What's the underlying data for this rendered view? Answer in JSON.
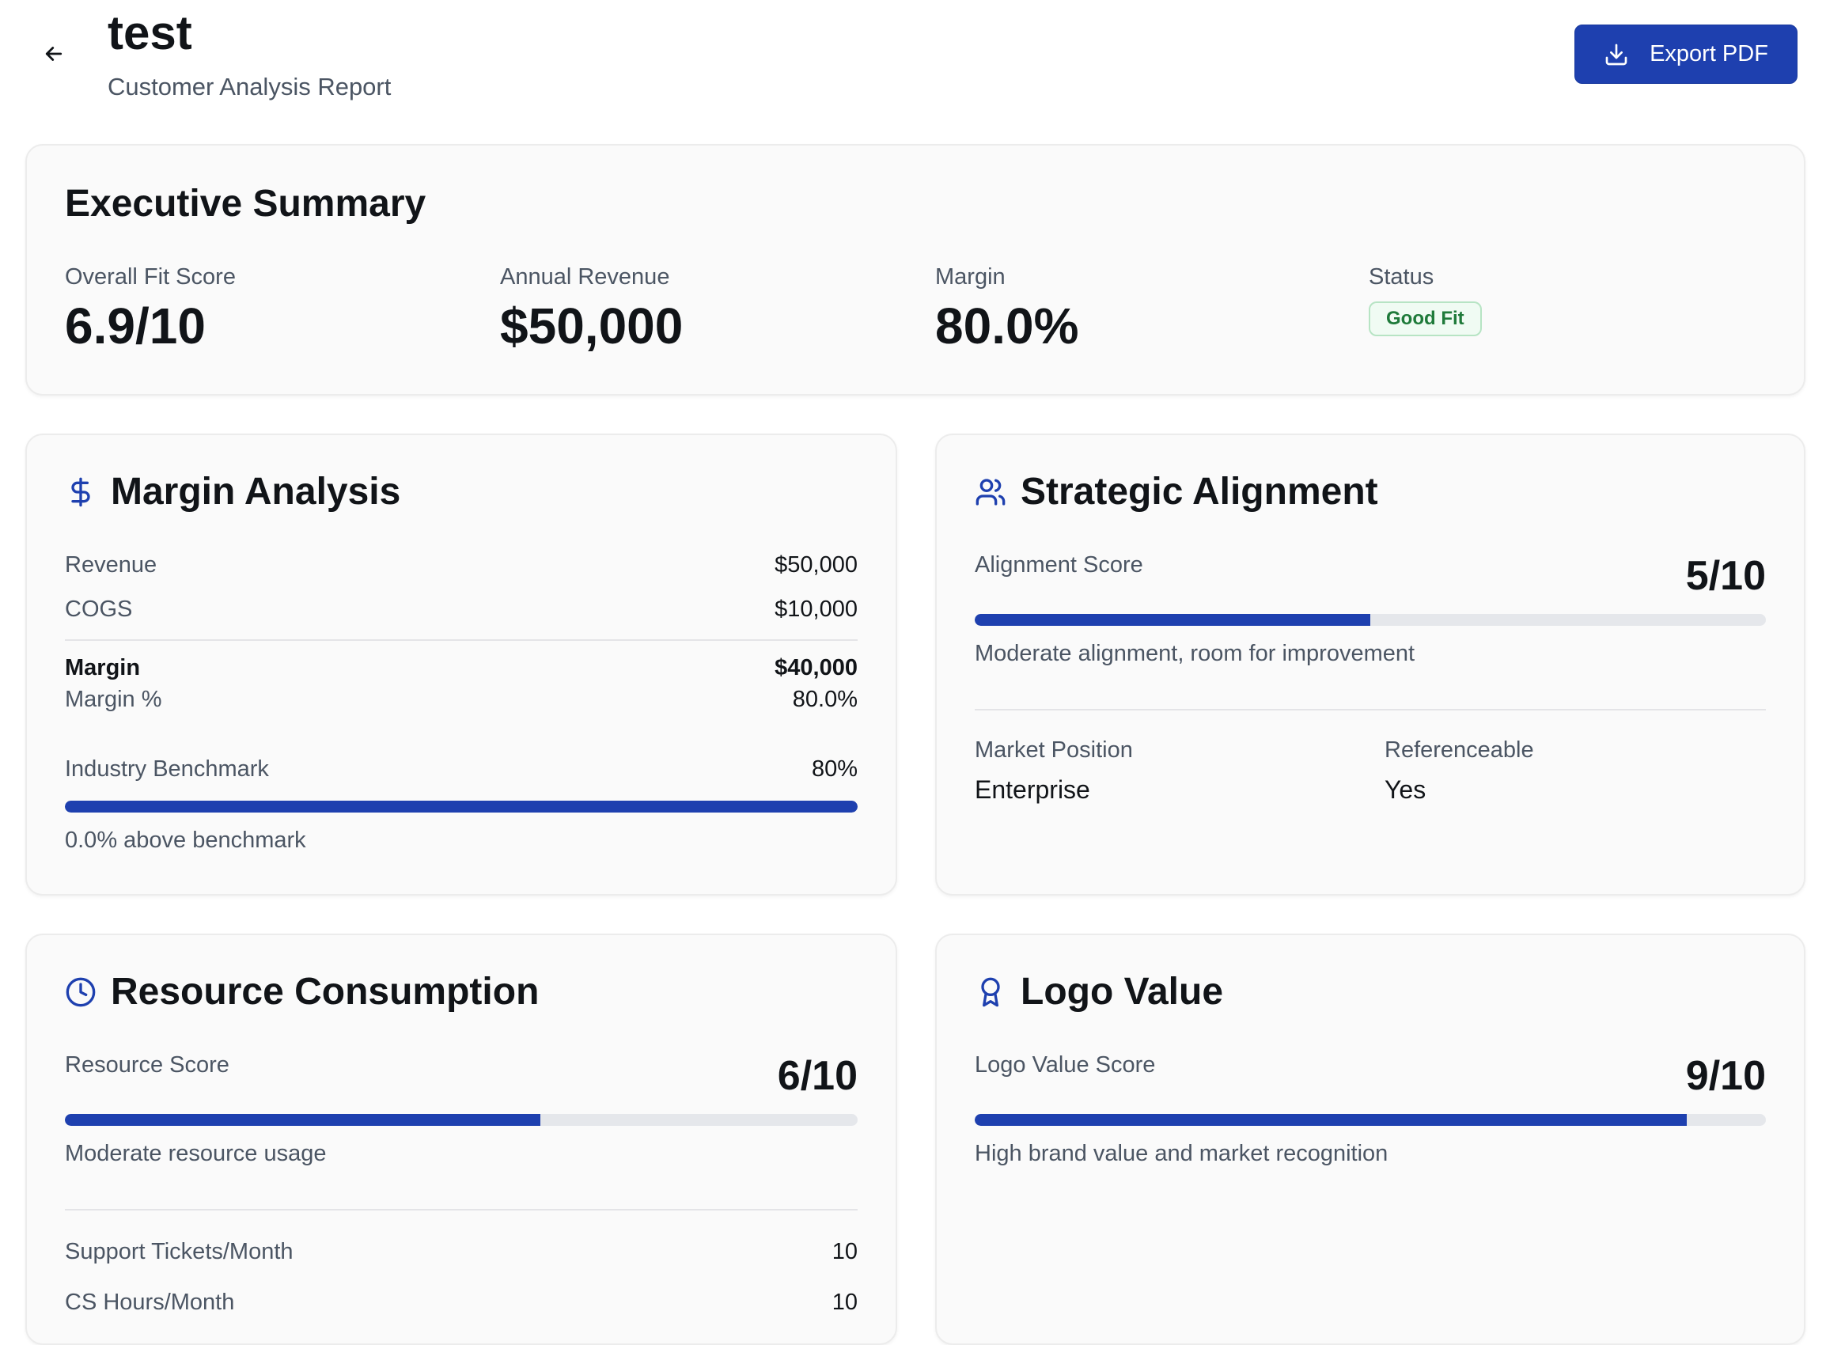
{
  "header": {
    "title": "test",
    "subtitle": "Customer Analysis Report",
    "export_label": "Export PDF"
  },
  "executive_summary": {
    "title": "Executive Summary",
    "metrics": [
      {
        "label": "Overall Fit Score",
        "value": "6.9/10"
      },
      {
        "label": "Annual Revenue",
        "value": "$50,000"
      },
      {
        "label": "Margin",
        "value": "80.0%"
      }
    ],
    "status_label": "Status",
    "status_value": "Good Fit"
  },
  "margin_analysis": {
    "title": "Margin Analysis",
    "revenue_label": "Revenue",
    "revenue_value": "$50,000",
    "cogs_label": "COGS",
    "cogs_value": "$10,000",
    "margin_label": "Margin",
    "margin_value": "$40,000",
    "margin_pct_label": "Margin %",
    "margin_pct_value": "80.0%",
    "benchmark_label": "Industry Benchmark",
    "benchmark_value": "80%",
    "benchmark_fill": 1.0,
    "benchmark_note": "0.0% above benchmark"
  },
  "strategic_alignment": {
    "title": "Strategic Alignment",
    "score_label": "Alignment Score",
    "score_value": "5/10",
    "score_fill": 0.5,
    "note": "Moderate alignment, room for improvement",
    "market_position_label": "Market Position",
    "market_position_value": "Enterprise",
    "referenceable_label": "Referenceable",
    "referenceable_value": "Yes"
  },
  "resource_consumption": {
    "title": "Resource Consumption",
    "score_label": "Resource Score",
    "score_value": "6/10",
    "score_fill": 0.6,
    "note": "Moderate resource usage",
    "tickets_label": "Support Tickets/Month",
    "tickets_value": "10",
    "cs_hours_label": "CS Hours/Month",
    "cs_hours_value": "10"
  },
  "logo_value": {
    "title": "Logo Value",
    "score_label": "Logo Value Score",
    "score_value": "9/10",
    "score_fill": 0.9,
    "note": "High brand value and market recognition"
  },
  "colors": {
    "accent": "#1e40af",
    "good_fit_text": "#1f7a3a"
  },
  "icons": {
    "back": "arrow-left-icon",
    "export": "download-icon",
    "margin": "dollar-icon",
    "alignment": "users-icon",
    "resource": "clock-icon",
    "logo": "award-icon"
  }
}
